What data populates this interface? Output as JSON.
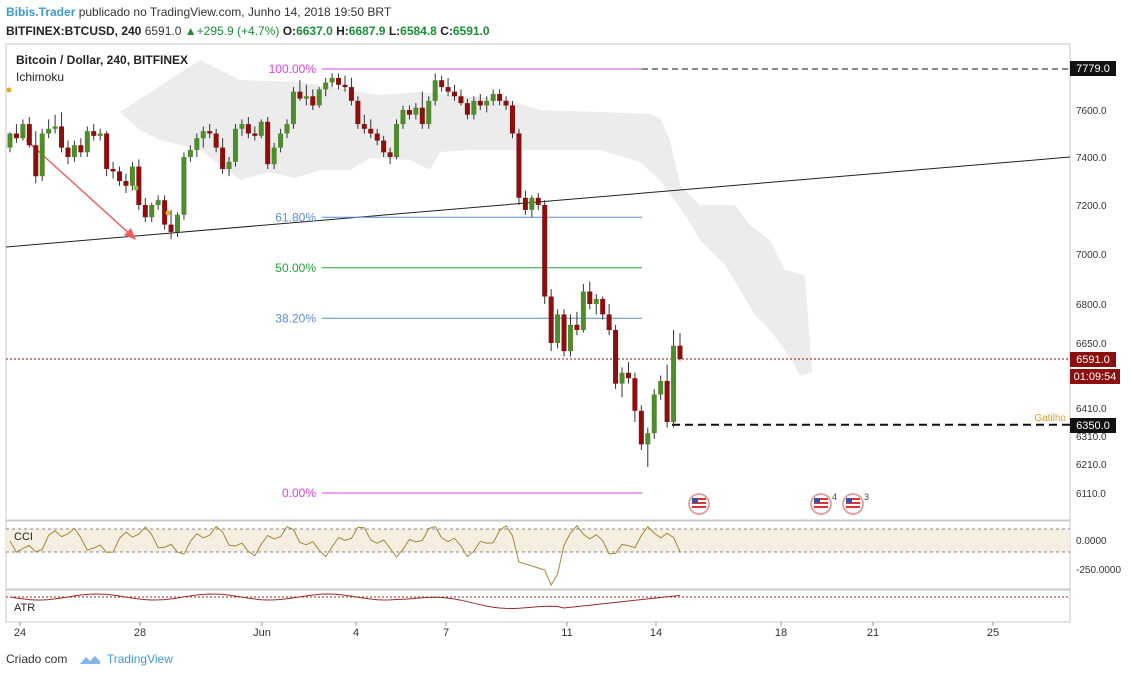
{
  "header": {
    "author": "Bibis.Trader",
    "published_text": "publicado no TradingView.com, Junho 14, 2018 19:50 BRT",
    "symbol": "BITFINEX:BTCUSD, 240",
    "last": "6591.0",
    "change": "+295.9 (+4.7%)",
    "o_label": "O:",
    "o_value": "6637.0",
    "h_label": "H:",
    "h_value": "6687.9",
    "l_label": "L:",
    "l_value": "6584.8",
    "c_label": "C:",
    "c_value": "6591.0"
  },
  "footer": {
    "created_label": "Criado com",
    "brand": "TradingView"
  },
  "colors": {
    "up": "#4e8d2c",
    "down": "#8b0f0f",
    "cloud": "#ececec",
    "fib_high": "#e040e0",
    "fib_blue": "#5b8ed6",
    "fib_green": "#21a33a",
    "cci": "#a8853a",
    "atr": "#9c2a2a"
  },
  "chart_data": {
    "type": "candlestick",
    "title": "Bitcoin / Dollar, 240, BITFINEX",
    "indicator_label": "Ichimoku",
    "y_ticks": [
      "7600.0",
      "7400.0",
      "7200.0",
      "7000.0",
      "6800.0",
      "6650.0",
      "6410.0",
      "6310.0",
      "6210.0",
      "6110.0"
    ],
    "x_ticks": [
      "24",
      "28",
      "Jun",
      "4",
      "7",
      "11",
      "14",
      "18",
      "21",
      "25"
    ],
    "price_labels": {
      "top": "7779.0",
      "current": "6591.0",
      "countdown": "01:09:54",
      "trigger": "6350.0",
      "trigger_label": "Gatilho"
    },
    "fib_levels": [
      {
        "label": "100.00%",
        "price": 7779
      },
      {
        "label": "61.80%",
        "price": 7150
      },
      {
        "label": "50.00%",
        "price": 6945
      },
      {
        "label": "38.20%",
        "price": 6745
      },
      {
        "label": "0.00%",
        "price": 6110
      }
    ],
    "event_badges": [
      "4",
      "3"
    ],
    "cci": {
      "label": "CCI",
      "ticks": [
        "0.0000",
        "-250.0000"
      ]
    },
    "atr": {
      "label": "ATR"
    },
    "candles": [
      [
        7440,
        7505,
        7420,
        7500
      ],
      [
        7500,
        7540,
        7460,
        7480
      ],
      [
        7480,
        7560,
        7470,
        7540
      ],
      [
        7540,
        7570,
        7440,
        7450
      ],
      [
        7450,
        7510,
        7290,
        7320
      ],
      [
        7320,
        7520,
        7300,
        7500
      ],
      [
        7500,
        7560,
        7480,
        7520
      ],
      [
        7520,
        7580,
        7500,
        7530
      ],
      [
        7530,
        7590,
        7420,
        7440
      ],
      [
        7440,
        7470,
        7370,
        7400
      ],
      [
        7400,
        7470,
        7380,
        7450
      ],
      [
        7450,
        7480,
        7400,
        7420
      ],
      [
        7420,
        7530,
        7400,
        7510
      ],
      [
        7510,
        7540,
        7470,
        7490
      ],
      [
        7490,
        7520,
        7470,
        7500
      ],
      [
        7500,
        7510,
        7320,
        7350
      ],
      [
        7350,
        7380,
        7310,
        7340
      ],
      [
        7340,
        7360,
        7280,
        7300
      ],
      [
        7300,
        7330,
        7250,
        7280
      ],
      [
        7280,
        7380,
        7260,
        7360
      ],
      [
        7360,
        7390,
        7180,
        7200
      ],
      [
        7200,
        7230,
        7130,
        7150
      ],
      [
        7150,
        7210,
        7130,
        7200
      ],
      [
        7200,
        7240,
        7180,
        7220
      ],
      [
        7220,
        7240,
        7100,
        7120
      ],
      [
        7120,
        7180,
        7060,
        7090
      ],
      [
        7090,
        7170,
        7070,
        7160
      ],
      [
        7160,
        7420,
        7140,
        7400
      ],
      [
        7400,
        7450,
        7380,
        7430
      ],
      [
        7430,
        7500,
        7400,
        7480
      ],
      [
        7480,
        7530,
        7440,
        7510
      ],
      [
        7510,
        7540,
        7480,
        7500
      ],
      [
        7500,
        7520,
        7420,
        7440
      ],
      [
        7440,
        7480,
        7330,
        7350
      ],
      [
        7350,
        7400,
        7320,
        7380
      ],
      [
        7380,
        7540,
        7360,
        7520
      ],
      [
        7520,
        7560,
        7490,
        7540
      ],
      [
        7540,
        7570,
        7480,
        7500
      ],
      [
        7500,
        7530,
        7470,
        7490
      ],
      [
        7490,
        7560,
        7480,
        7550
      ],
      [
        7550,
        7570,
        7350,
        7370
      ],
      [
        7370,
        7460,
        7350,
        7440
      ],
      [
        7440,
        7520,
        7420,
        7500
      ],
      [
        7500,
        7560,
        7480,
        7540
      ],
      [
        7540,
        7700,
        7520,
        7680
      ],
      [
        7680,
        7730,
        7640,
        7650
      ],
      [
        7650,
        7710,
        7620,
        7660
      ],
      [
        7660,
        7690,
        7600,
        7620
      ],
      [
        7620,
        7700,
        7610,
        7690
      ],
      [
        7690,
        7740,
        7660,
        7720
      ],
      [
        7720,
        7760,
        7700,
        7740
      ],
      [
        7740,
        7760,
        7690,
        7710
      ],
      [
        7710,
        7750,
        7680,
        7700
      ],
      [
        7700,
        7740,
        7620,
        7640
      ],
      [
        7640,
        7660,
        7520,
        7540
      ],
      [
        7540,
        7580,
        7500,
        7520
      ],
      [
        7520,
        7560,
        7480,
        7500
      ],
      [
        7500,
        7520,
        7450,
        7470
      ],
      [
        7470,
        7490,
        7400,
        7420
      ],
      [
        7420,
        7440,
        7370,
        7400
      ],
      [
        7400,
        7560,
        7390,
        7540
      ],
      [
        7540,
        7620,
        7520,
        7600
      ],
      [
        7600,
        7620,
        7560,
        7580
      ],
      [
        7580,
        7630,
        7560,
        7610
      ],
      [
        7610,
        7680,
        7520,
        7540
      ],
      [
        7540,
        7660,
        7520,
        7640
      ],
      [
        7640,
        7760,
        7620,
        7730
      ],
      [
        7730,
        7750,
        7680,
        7700
      ],
      [
        7700,
        7740,
        7660,
        7680
      ],
      [
        7680,
        7710,
        7640,
        7660
      ],
      [
        7660,
        7690,
        7620,
        7630
      ],
      [
        7630,
        7650,
        7560,
        7580
      ],
      [
        7580,
        7660,
        7560,
        7640
      ],
      [
        7640,
        7670,
        7600,
        7620
      ],
      [
        7620,
        7660,
        7590,
        7640
      ],
      [
        7640,
        7690,
        7620,
        7670
      ],
      [
        7670,
        7690,
        7620,
        7640
      ],
      [
        7640,
        7660,
        7600,
        7620
      ],
      [
        7620,
        7640,
        7480,
        7500
      ],
      [
        7500,
        7520,
        7200,
        7230
      ],
      [
        7230,
        7260,
        7160,
        7180
      ],
      [
        7180,
        7240,
        7150,
        7230
      ],
      [
        7230,
        7250,
        7180,
        7200
      ],
      [
        7200,
        7220,
        6800,
        6830
      ],
      [
        6830,
        6860,
        6620,
        6650
      ],
      [
        6650,
        6780,
        6630,
        6760
      ],
      [
        6760,
        6780,
        6600,
        6620
      ],
      [
        6620,
        6760,
        6600,
        6720
      ],
      [
        6720,
        6770,
        6680,
        6700
      ],
      [
        6700,
        6880,
        6690,
        6850
      ],
      [
        6850,
        6890,
        6780,
        6800
      ],
      [
        6800,
        6840,
        6760,
        6820
      ],
      [
        6820,
        6830,
        6740,
        6760
      ],
      [
        6760,
        6800,
        6680,
        6700
      ],
      [
        6700,
        6720,
        6480,
        6500
      ],
      [
        6500,
        6560,
        6450,
        6540
      ],
      [
        6540,
        6580,
        6500,
        6520
      ],
      [
        6520,
        6540,
        6360,
        6400
      ],
      [
        6400,
        6420,
        6260,
        6280
      ],
      [
        6280,
        6340,
        6200,
        6320
      ],
      [
        6320,
        6480,
        6300,
        6460
      ],
      [
        6460,
        6530,
        6440,
        6510
      ],
      [
        6510,
        6570,
        6340,
        6360
      ],
      [
        6360,
        6700,
        6340,
        6640
      ],
      [
        6640,
        6688,
        6585,
        6591
      ]
    ]
  }
}
